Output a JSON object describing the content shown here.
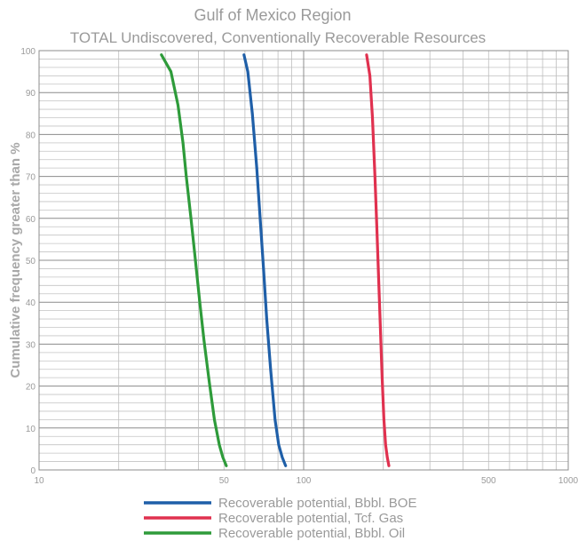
{
  "chart_data": {
    "type": "line",
    "title": "Gulf of Mexico Region",
    "subtitle": "TOTAL Undiscovered, Conventionally Recoverable Resources",
    "xlabel": "",
    "ylabel": "Cumulative frequency greater than  %",
    "xscale": "log",
    "xlim": [
      10,
      1000
    ],
    "ylim": [
      0,
      100
    ],
    "grid": true,
    "legend_position": "bottom",
    "x_ticks": [
      {
        "label": "10",
        "value": 10
      },
      {
        "label": "50",
        "value": 50
      },
      {
        "label": "100",
        "value": 100
      },
      {
        "label": "500",
        "value": 500
      },
      {
        "label": "1000",
        "value": 1000
      }
    ],
    "y_ticks": [
      {
        "label": "0",
        "value": 0
      },
      {
        "label": "10",
        "value": 10
      },
      {
        "label": "20",
        "value": 20
      },
      {
        "label": "30",
        "value": 30
      },
      {
        "label": "40",
        "value": 40
      },
      {
        "label": "50",
        "value": 50
      },
      {
        "label": "60",
        "value": 60
      },
      {
        "label": "70",
        "value": 70
      },
      {
        "label": "80",
        "value": 80
      },
      {
        "label": "90",
        "value": 90
      },
      {
        "label": "100",
        "value": 100
      }
    ],
    "series": [
      {
        "name": "Recoverable potential,  Bbbl.  BOE",
        "color": "#1f5fa8",
        "points": [
          [
            59.5,
            99
          ],
          [
            61.5,
            95
          ],
          [
            64,
            85
          ],
          [
            66.5,
            72
          ],
          [
            68.5,
            60
          ],
          [
            70.5,
            48
          ],
          [
            72.5,
            36
          ],
          [
            75,
            24
          ],
          [
            78,
            12
          ],
          [
            80.5,
            6
          ],
          [
            83,
            3
          ],
          [
            85.5,
            1
          ]
        ]
      },
      {
        "name": "Recoverable potential,  Tcf.  Gas",
        "color": "#e0314f",
        "points": [
          [
            173,
            99
          ],
          [
            178,
            94
          ],
          [
            182,
            84
          ],
          [
            186,
            70
          ],
          [
            189,
            58
          ],
          [
            192,
            46
          ],
          [
            195,
            34
          ],
          [
            198,
            22
          ],
          [
            201,
            12
          ],
          [
            204,
            6
          ],
          [
            207,
            3
          ],
          [
            210,
            1
          ]
        ]
      },
      {
        "name": "Recoverable potential,  Bbbl.  Oil",
        "color": "#2e9b3a",
        "points": [
          [
            29,
            99
          ],
          [
            31.5,
            95
          ],
          [
            33.5,
            87
          ],
          [
            35,
            78
          ],
          [
            36,
            70
          ],
          [
            37.5,
            60
          ],
          [
            39,
            50
          ],
          [
            40.5,
            40
          ],
          [
            42,
            31
          ],
          [
            44,
            21
          ],
          [
            46,
            12
          ],
          [
            48,
            6
          ],
          [
            49.5,
            3
          ],
          [
            51,
            1
          ]
        ]
      }
    ]
  }
}
